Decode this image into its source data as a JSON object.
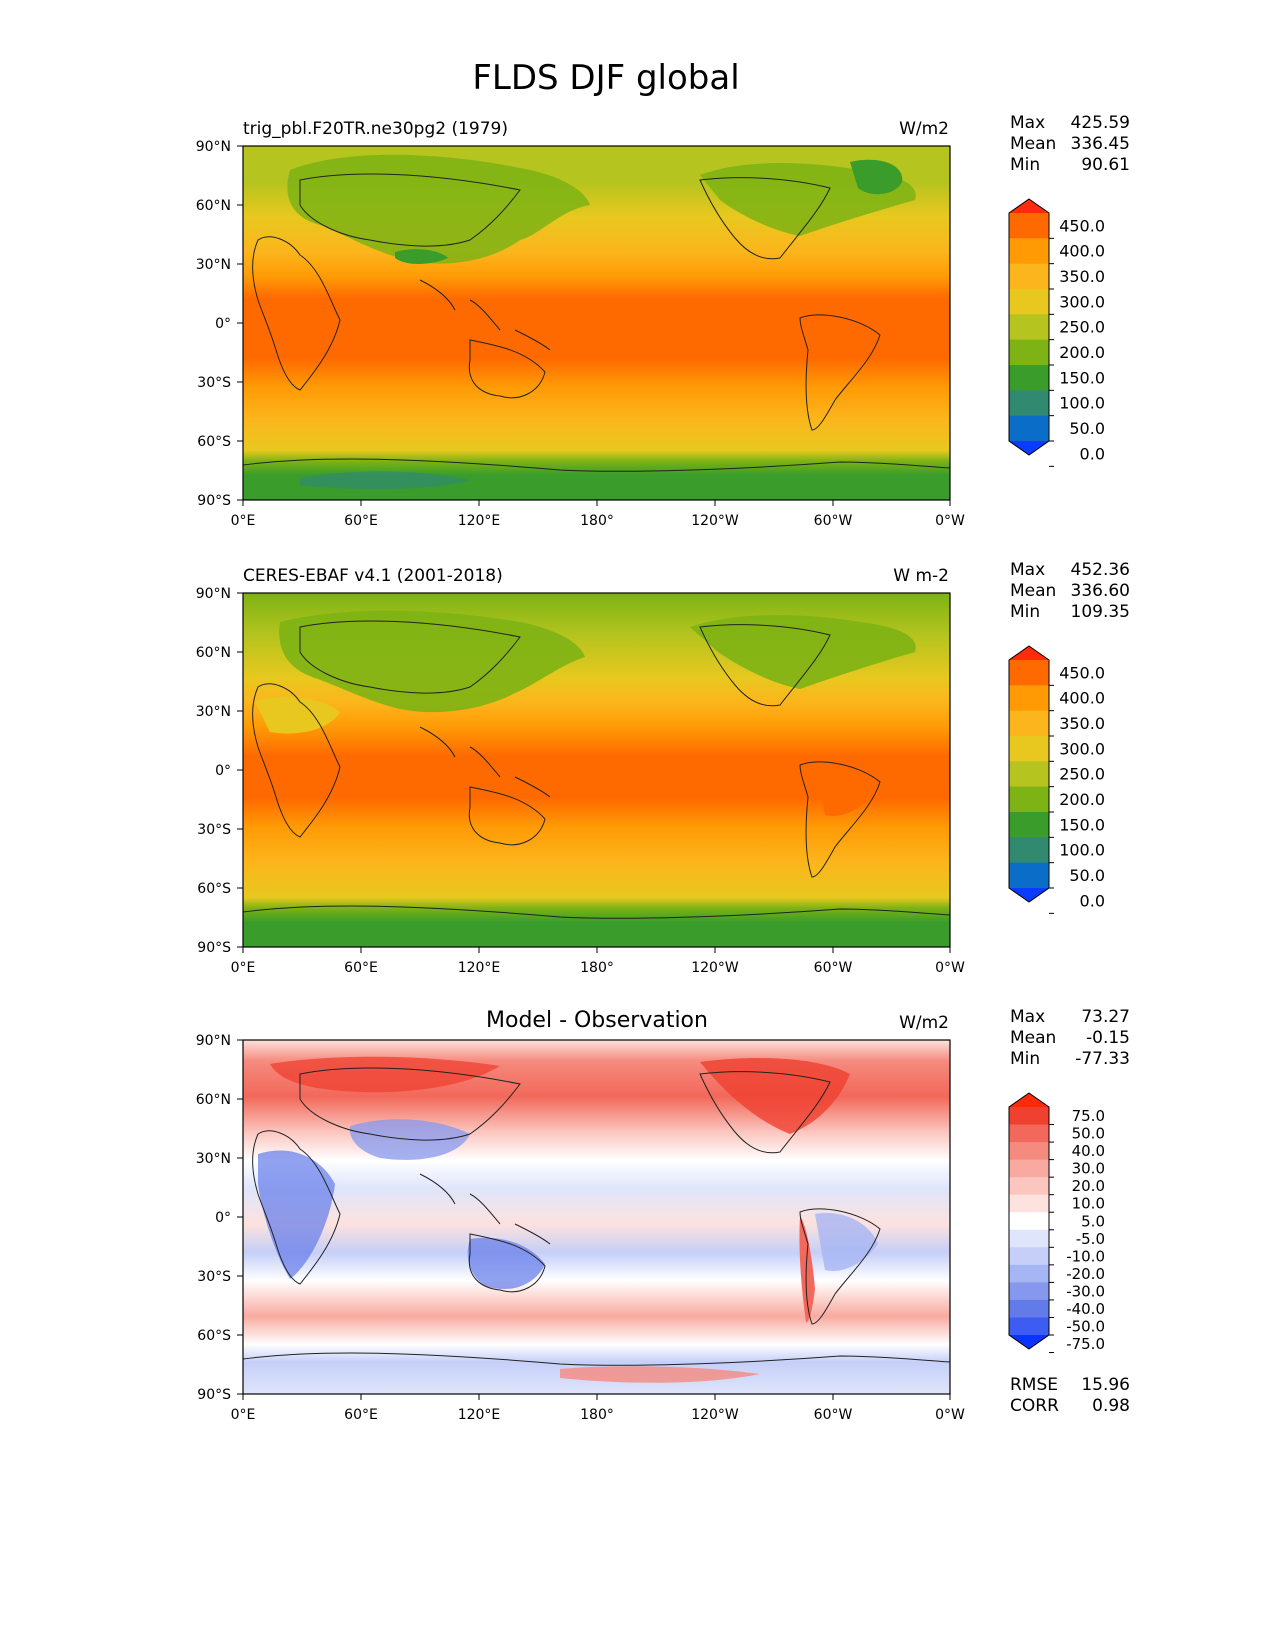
{
  "figure": {
    "title": "FLDS DJF global"
  },
  "axis_ticks": {
    "lat": [
      "90°N",
      "60°N",
      "30°N",
      "0°",
      "30°S",
      "60°S",
      "90°S"
    ],
    "lon": [
      "0°E",
      "60°E",
      "120°E",
      "180°",
      "120°W",
      "60°W",
      "0°W"
    ]
  },
  "panels": [
    {
      "left_title": "trig_pbl.F20TR.ne30pg2 (1979)",
      "center_title": "",
      "units": "W/m2",
      "stats": [
        {
          "label": "Max",
          "value": "425.59"
        },
        {
          "label": "Mean",
          "value": "336.45"
        },
        {
          "label": "Min",
          "value": "90.61"
        }
      ],
      "colorbar": {
        "levels": [
          "450.0",
          "400.0",
          "350.0",
          "300.0",
          "250.0",
          "200.0",
          "150.0",
          "100.0",
          "50.0",
          "0.0"
        ],
        "colors": [
          "#ff2b0a",
          "#ff6a00",
          "#ff9a05",
          "#fcb51c",
          "#e8c81f",
          "#b5c41e",
          "#7db314",
          "#3a9c2a",
          "#318a70",
          "#0a6ec8",
          "#0a3cff"
        ]
      }
    },
    {
      "left_title": "CERES-EBAF v4.1 (2001-2018)",
      "center_title": "",
      "units": "W m-2",
      "stats": [
        {
          "label": "Max",
          "value": "452.36"
        },
        {
          "label": "Mean",
          "value": "336.60"
        },
        {
          "label": "Min",
          "value": "109.35"
        }
      ],
      "colorbar": {
        "levels": [
          "450.0",
          "400.0",
          "350.0",
          "300.0",
          "250.0",
          "200.0",
          "150.0",
          "100.0",
          "50.0",
          "0.0"
        ],
        "colors": [
          "#ff2b0a",
          "#ff6a00",
          "#ff9a05",
          "#fcb51c",
          "#e8c81f",
          "#b5c41e",
          "#7db314",
          "#3a9c2a",
          "#318a70",
          "#0a6ec8",
          "#0a3cff"
        ]
      }
    },
    {
      "left_title": "",
      "center_title": "Model - Observation",
      "units": "W/m2",
      "stats": [
        {
          "label": "Max",
          "value": "73.27"
        },
        {
          "label": "Mean",
          "value": "-0.15"
        },
        {
          "label": "Min",
          "value": "-77.33"
        }
      ],
      "bottom_stats": [
        {
          "label": "RMSE",
          "value": "15.96"
        },
        {
          "label": "CORR",
          "value": "0.98"
        }
      ],
      "colorbar": {
        "levels": [
          "75.0",
          "50.0",
          "40.0",
          "30.0",
          "20.0",
          "10.0",
          "5.0",
          "-5.0",
          "-10.0",
          "-20.0",
          "-30.0",
          "-40.0",
          "-50.0",
          "-75.0"
        ],
        "colors": [
          "#ff2a0a",
          "#ef4030",
          "#f2685a",
          "#f58a7e",
          "#f8aaa0",
          "#fbc6bf",
          "#fde2de",
          "#ffffff",
          "#dfe5fb",
          "#c5cff8",
          "#a6b5f3",
          "#8598ee",
          "#627be9",
          "#3d5cf2",
          "#0a33ff"
        ]
      }
    }
  ]
}
